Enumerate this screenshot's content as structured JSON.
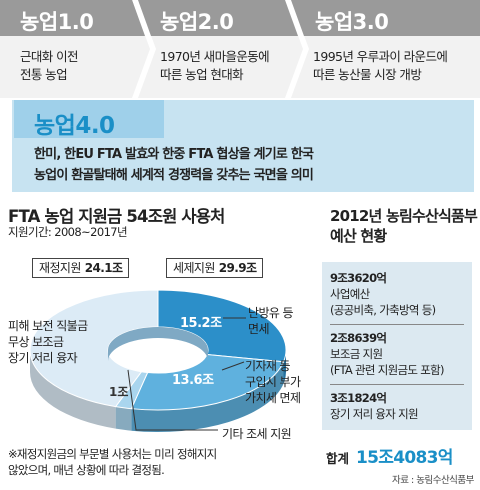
{
  "stages": [
    {
      "title": "농업1.0",
      "desc": "근대화 이전\n전통 농업",
      "fill": "#9a9a9a"
    },
    {
      "title": "농업2.0",
      "desc": "1970년 새마을운동에\n따른 농업 현대화",
      "fill": "#9a9a9a"
    },
    {
      "title": "농업3.0",
      "desc": "1995년 우루과이 라운드에\n따른 농산물 시장 개방",
      "fill": "#9a9a9a"
    }
  ],
  "agri4": {
    "title": "농업4.0",
    "desc": "한미, 한EU FTA 발효와 한중 FTA 협상을 계기로 한국\n농업이 환골탈태해 세계적 경쟁력을 갖추는 국면을 의미"
  },
  "chart_data": {
    "type": "pie",
    "title": "FTA 농업 지원금 54조원 사용처",
    "subtitle": "지원기간: 2008~2017년",
    "unit": "조원",
    "groups": [
      {
        "name": "재정지원",
        "total_label": "24.1조",
        "total": 24.1
      },
      {
        "name": "세제지원",
        "total_label": "29.9조",
        "total": 29.9
      }
    ],
    "slices": [
      {
        "group": "세제지원",
        "name": "난방유 등\n면세",
        "value": 15.2,
        "value_label": "15.2조",
        "color": "#2c8fc9"
      },
      {
        "group": "세제지원",
        "name": "기자재 등\n구입시 부가\n가치세 면제",
        "value": 13.6,
        "value_label": "13.6조",
        "color": "#5fb1de"
      },
      {
        "group": "세제지원",
        "name": "기타 조세 지원",
        "value": 1.1,
        "value_label": "1조",
        "color": "#a9d5ee"
      },
      {
        "group": "재정지원",
        "name": "피해 보전 직불금\n무상 보조금\n장기 저리 융자",
        "value": 24.1,
        "value_label": "",
        "color": "#dcebf6"
      }
    ]
  },
  "note": "※재정지원금의 부문별 사용처는 미리 정해지지\n않았으며, 매년 상황에 따라 결정됨.",
  "budget": {
    "title": "2012년 농림수산식품부\n예산 현황",
    "items": [
      {
        "amount": "9조3620억",
        "name": "사업예산\n(공공비축, 가축방역 등)"
      },
      {
        "amount": "2조8639억",
        "name": "보조금 지원\n(FTA 관련 지원금도 포함)"
      },
      {
        "amount": "3조1824억",
        "name": "장기 저리 융자 지원"
      }
    ],
    "total_label": "합계",
    "total_value": "15조4083억"
  },
  "source": "자료 : 농림수산식품부"
}
